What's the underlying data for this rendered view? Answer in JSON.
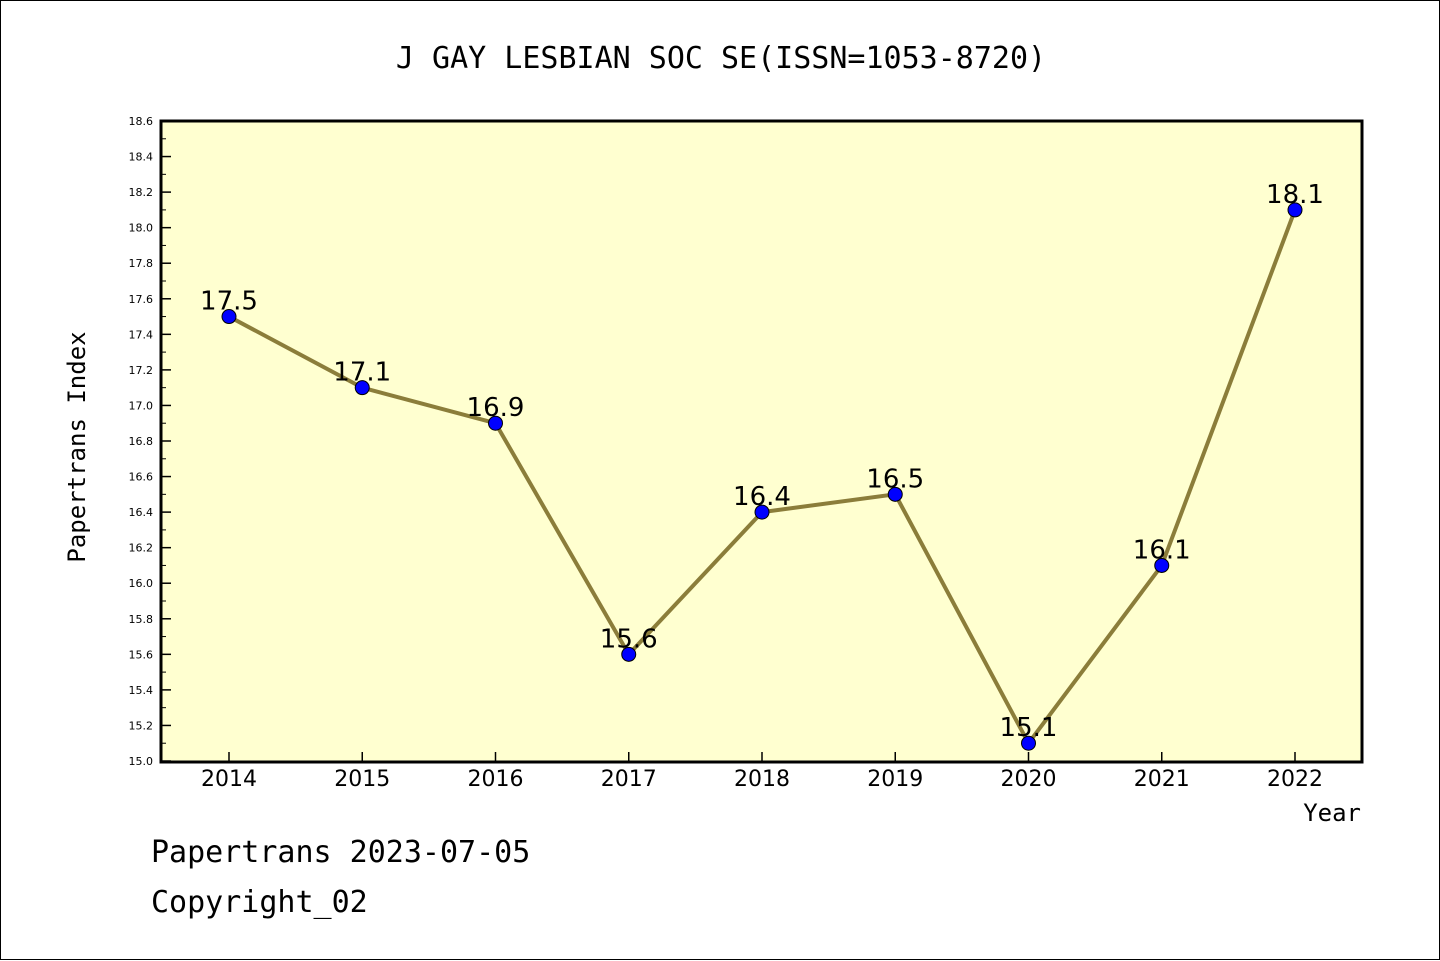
{
  "chart_data": {
    "type": "line",
    "title": "J GAY LESBIAN SOC SE(ISSN=1053-8720)",
    "xlabel": "Year",
    "ylabel": "Papertrans Index",
    "categories": [
      "2014",
      "2015",
      "2016",
      "2017",
      "2018",
      "2019",
      "2020",
      "2021",
      "2022"
    ],
    "series": [
      {
        "values": [
          17.5,
          17.1,
          16.9,
          15.6,
          16.4,
          16.5,
          15.1,
          16.1,
          18.1
        ]
      }
    ],
    "data_labels": [
      "17.5",
      "17.1",
      "16.9",
      "15.6",
      "16.4",
      "16.5",
      "15.1",
      "16.1",
      "18.1"
    ],
    "ylim": [
      15.0,
      18.6
    ],
    "yticks": [
      "15.0",
      "15.2",
      "15.4",
      "15.6",
      "15.8",
      "16.0",
      "16.2",
      "16.4",
      "16.6",
      "16.8",
      "17.0",
      "17.2",
      "17.4",
      "17.6",
      "17.8",
      "18.0",
      "18.2",
      "18.4",
      "18.6"
    ],
    "grid": false,
    "colors": {
      "plot_background": "#ffffd0",
      "line": "#8b7d3a",
      "marker": "#0000ff"
    }
  },
  "footer": {
    "line1": "Papertrans 2023-07-05",
    "line2": "Copyright_02"
  }
}
